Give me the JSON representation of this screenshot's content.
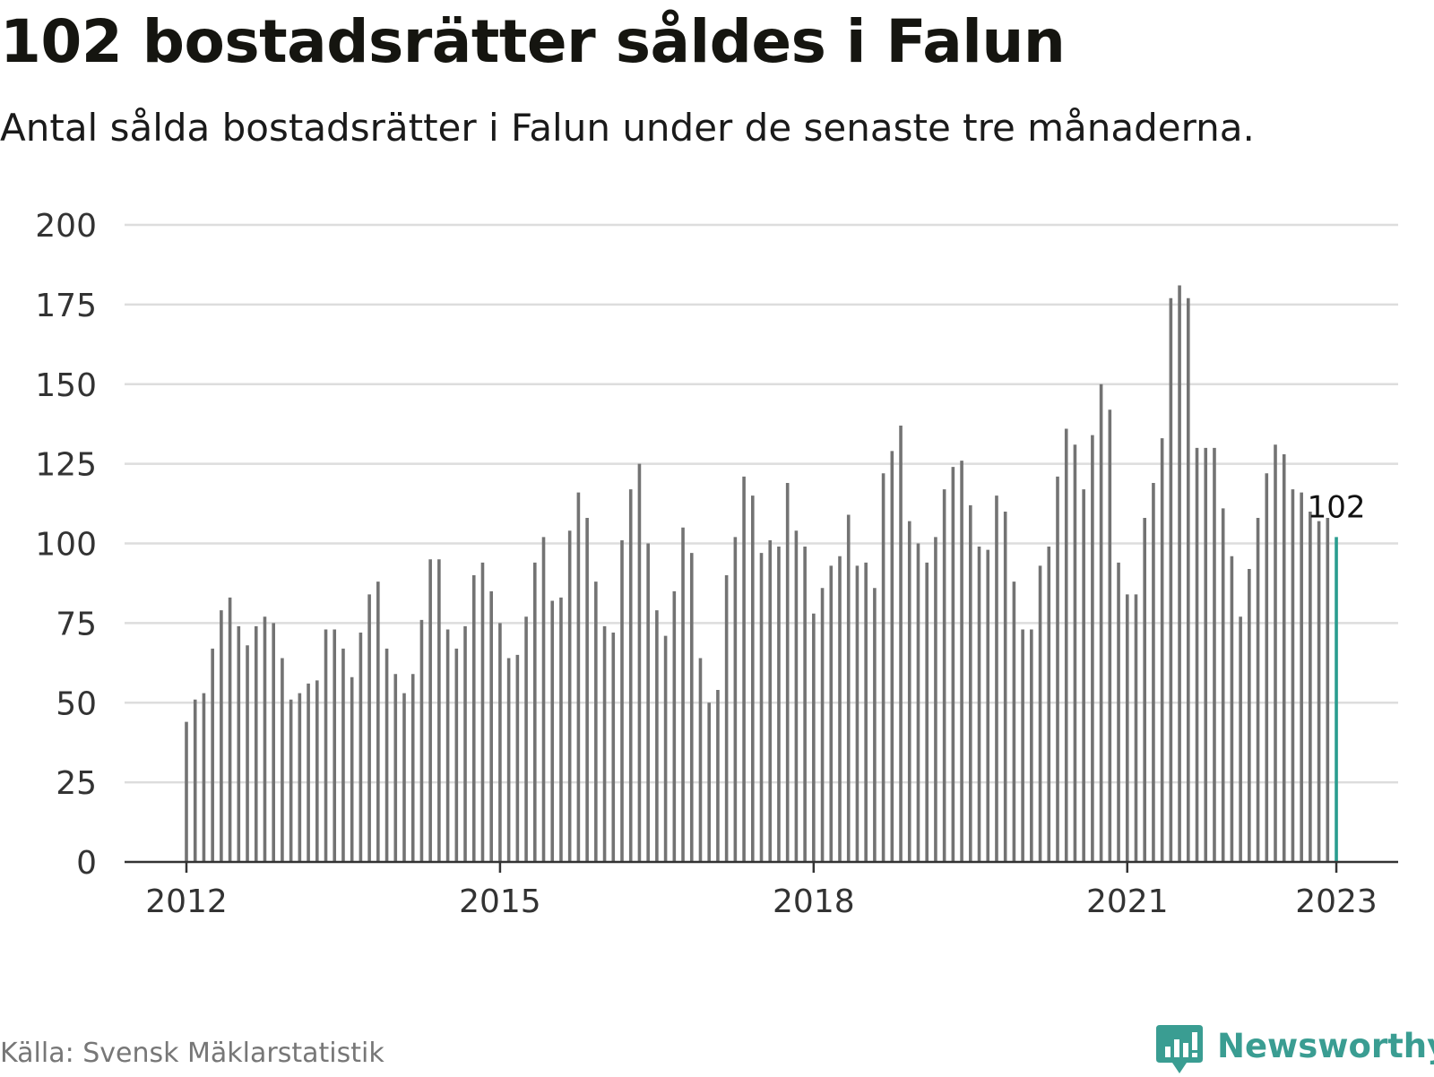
{
  "title": "102 bostadsrätter såldes i Falun",
  "subtitle": "Antal sålda bostadsrätter i Falun under de senaste tre månaderna.",
  "source": "Källa: Svensk Mäklarstatistik",
  "brand": {
    "name": "Newsworthy",
    "icon": "newsworthy-logo-icon"
  },
  "colors": {
    "bar": "#737373",
    "highlight": "#2a9d8f",
    "grid": "#dddddd",
    "axis": "#333333",
    "brand": "#3a9d92"
  },
  "chart_data": {
    "type": "bar",
    "title": "102 bostadsrätter såldes i Falun",
    "subtitle": "Antal sålda bostadsrätter i Falun under de senaste tre månaderna.",
    "xlabel": "",
    "ylabel": "",
    "ylim": [
      0,
      200
    ],
    "yticks": [
      "0",
      "25",
      "50",
      "75",
      "100",
      "125",
      "150",
      "175",
      "200"
    ],
    "xticks": [
      "2012",
      "2015",
      "2018",
      "2021",
      "2023"
    ],
    "start": "2012-01",
    "frequency": "monthly",
    "grid": true,
    "legend": "none",
    "highlight": {
      "label": "102",
      "value": 102,
      "index": 132
    },
    "values": [
      44,
      51,
      53,
      67,
      79,
      83,
      74,
      68,
      74,
      77,
      75,
      64,
      51,
      53,
      56,
      57,
      73,
      73,
      67,
      58,
      72,
      84,
      88,
      67,
      59,
      53,
      59,
      76,
      95,
      95,
      73,
      67,
      74,
      90,
      94,
      85,
      75,
      64,
      65,
      77,
      94,
      102,
      82,
      83,
      104,
      116,
      108,
      88,
      74,
      72,
      101,
      117,
      125,
      100,
      79,
      71,
      85,
      105,
      97,
      64,
      50,
      54,
      90,
      102,
      121,
      115,
      97,
      101,
      99,
      119,
      104,
      99,
      78,
      86,
      93,
      96,
      109,
      93,
      94,
      86,
      122,
      129,
      137,
      107,
      100,
      94,
      102,
      117,
      124,
      126,
      112,
      99,
      98,
      115,
      110,
      88,
      73,
      73,
      93,
      99,
      121,
      136,
      131,
      117,
      134,
      150,
      142,
      94,
      84,
      84,
      108,
      119,
      133,
      177,
      181,
      177,
      130,
      130,
      130,
      111,
      96,
      77,
      92,
      108,
      122,
      131,
      128,
      117,
      116,
      110,
      107,
      108,
      102
    ]
  }
}
